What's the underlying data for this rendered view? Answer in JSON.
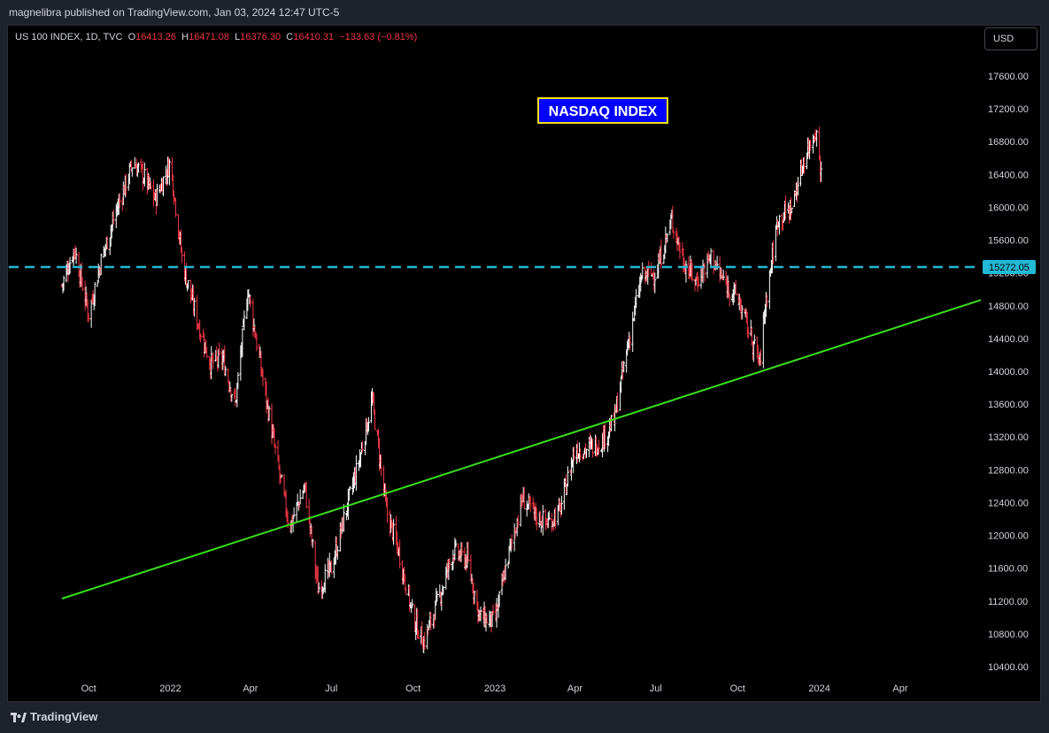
{
  "header": {
    "published_text": "magnelibra published on TradingView.com, Jan 03, 2024 12:47 UTC-5"
  },
  "legend": {
    "symbol": "US 100 INDEX, 1D, TVC",
    "open_label": "O",
    "open": "16413.26",
    "high_label": "H",
    "high": "16471.08",
    "low_label": "L",
    "low": "16376.30",
    "close_label": "C",
    "close": "16410.31",
    "change": "−133.63 (−0.81%)"
  },
  "currency_button": "USD",
  "footer": {
    "brand": "TradingView"
  },
  "colors": {
    "up": "#ffffff",
    "down": "#f23645",
    "trendline": "#39e01d",
    "hline": "#22b8d4",
    "annotation_bg": "#0000ff",
    "annotation_border": "#f2e10e"
  },
  "chart_data": {
    "type": "line",
    "subtype": "ohlc-bars",
    "title": "NASDAQ INDEX",
    "series": [
      {
        "x": [
          "2021-09-01",
          "2021-09-15",
          "2021-10-01",
          "2021-10-15",
          "2021-11-01",
          "2021-11-20",
          "2021-12-01",
          "2021-12-15",
          "2022-01-01",
          "2022-01-15",
          "2022-02-01",
          "2022-02-15",
          "2022-03-01",
          "2022-03-15",
          "2022-03-29",
          "2022-04-15",
          "2022-05-01",
          "2022-05-15",
          "2022-06-01",
          "2022-06-16",
          "2022-07-01",
          "2022-07-15",
          "2022-08-01",
          "2022-08-16",
          "2022-09-01",
          "2022-09-15",
          "2022-10-01",
          "2022-10-13",
          "2022-11-01",
          "2022-11-15",
          "2022-12-01",
          "2022-12-15",
          "2023-01-01",
          "2023-01-15",
          "2023-02-01",
          "2023-02-15",
          "2023-03-01",
          "2023-03-15",
          "2023-04-01",
          "2023-04-15",
          "2023-05-01",
          "2023-05-15",
          "2023-06-01",
          "2023-06-15",
          "2023-07-01",
          "2023-07-19",
          "2023-08-01",
          "2023-08-15",
          "2023-09-01",
          "2023-09-15",
          "2023-10-01",
          "2023-10-26",
          "2023-11-01",
          "2023-11-15",
          "2023-12-01",
          "2023-12-15",
          "2023-12-28",
          "2024-01-03"
        ],
        "values": [
          15050,
          15500,
          14700,
          15350,
          15950,
          16550,
          16400,
          16100,
          16550,
          15300,
          14600,
          14100,
          14150,
          13600,
          15000,
          13900,
          12900,
          12100,
          12600,
          11350,
          11600,
          12200,
          12900,
          13650,
          12300,
          11800,
          11000,
          10700,
          11300,
          11800,
          11700,
          11000,
          10950,
          11700,
          12450,
          12250,
          12150,
          12300,
          13050,
          13050,
          13150,
          13400,
          14400,
          15150,
          15200,
          15850,
          15350,
          15100,
          15400,
          15100,
          14900,
          14100,
          14800,
          15850,
          16000,
          16600,
          16950,
          16410
        ]
      }
    ],
    "yticks": [
      "10400.00",
      "10800.00",
      "11200.00",
      "11600.00",
      "12000.00",
      "12400.00",
      "12800.00",
      "13200.00",
      "13600.00",
      "14000.00",
      "14400.00",
      "14800.00",
      "15200.00",
      "15600.00",
      "16000.00",
      "16400.00",
      "16800.00",
      "17200.00",
      "17600.00"
    ],
    "xticks": [
      "Oct",
      "2022",
      "Apr",
      "Jul",
      "Oct",
      "2023",
      "Apr",
      "Jul",
      "Oct",
      "2024",
      "Apr"
    ],
    "ylim": [
      10245,
      18050
    ],
    "xlabel": "",
    "ylabel": "",
    "horizontal_line": {
      "value": 15272.05,
      "label": "15272.05"
    },
    "trendline": {
      "points": [
        [
          "2021-09-01",
          11230
        ],
        [
          "2024-05-01",
          14870
        ]
      ]
    },
    "grid": false,
    "scale": "linear"
  }
}
